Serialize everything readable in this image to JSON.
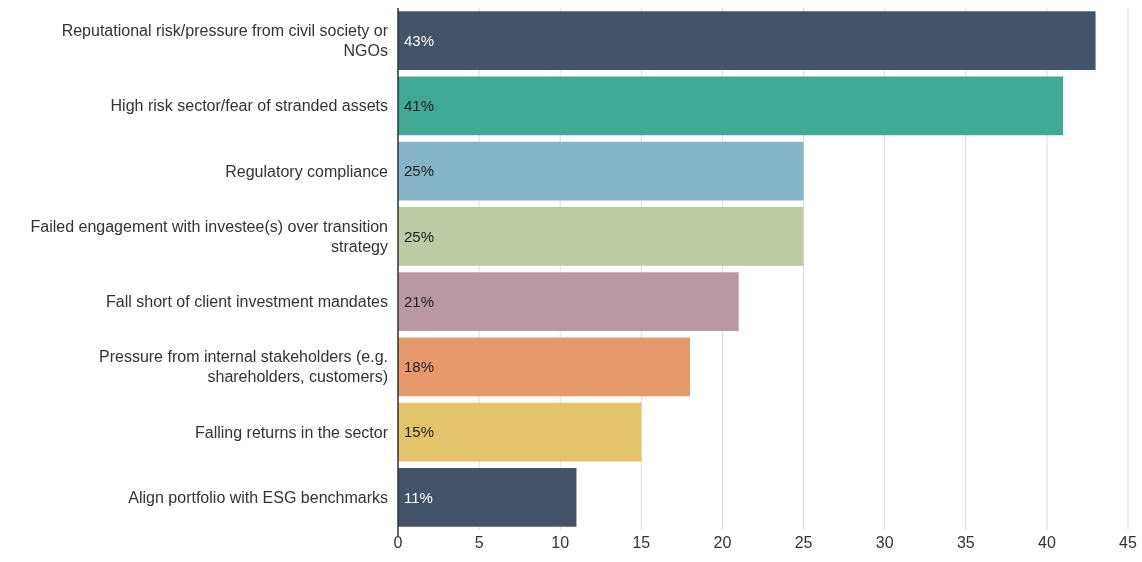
{
  "chart_data": {
    "type": "bar",
    "orientation": "horizontal",
    "categories": [
      "Reputational risk/pressure from civil society or NGOs",
      "High risk sector/fear of stranded assets",
      "Regulatory compliance",
      "Failed engagement with investee(s) over transition strategy",
      "Fall short of client investment mandates",
      "Pressure from internal stakeholders (e.g. shareholders, customers)",
      "Falling returns in the sector",
      "Align portfolio with ESG benchmarks"
    ],
    "values": [
      43,
      41,
      25,
      25,
      21,
      18,
      15,
      11
    ],
    "value_labels": [
      "43%",
      "41%",
      "25%",
      "25%",
      "21%",
      "18%",
      "15%",
      "11%"
    ],
    "colors": [
      "#435369",
      "#3fa994",
      "#86b4c8",
      "#bccba4",
      "#b998a3",
      "#e6996b",
      "#e3c46a",
      "#435369"
    ],
    "xlim": [
      0,
      45
    ],
    "xticks": [
      0,
      5,
      10,
      15,
      20,
      25,
      30,
      35,
      40,
      45
    ],
    "grid": "x"
  }
}
